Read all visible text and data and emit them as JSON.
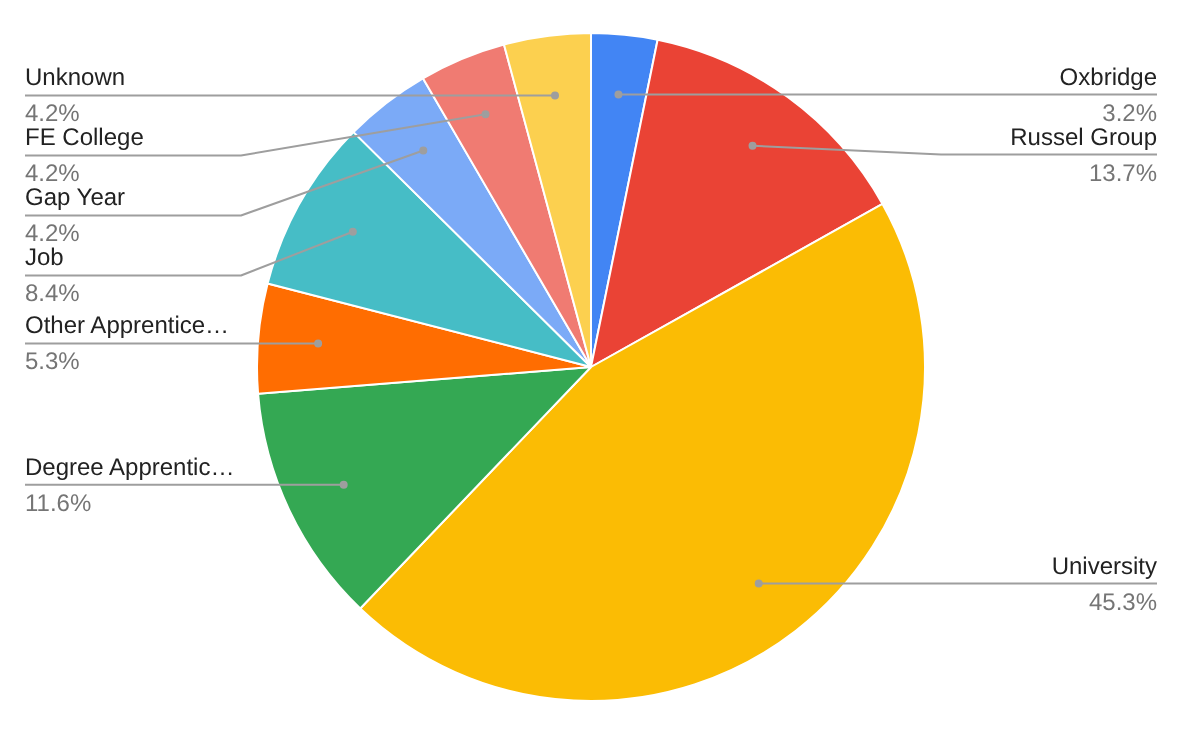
{
  "chart_data": {
    "type": "pie",
    "categories": [
      "Oxbridge",
      "Russel Group",
      "University",
      "Degree Apprentic…",
      "Other Apprentice…",
      "Job",
      "Gap Year",
      "FE College",
      "Unknown"
    ],
    "values": [
      3.2,
      13.7,
      45.3,
      11.6,
      5.3,
      8.4,
      4.2,
      4.2,
      4.2
    ],
    "colors": [
      "#4285f4",
      "#ea4335",
      "#fbbc04",
      "#34a853",
      "#ff6d01",
      "#46bdc6",
      "#7baaf7",
      "#f07b72",
      "#fcd04f"
    ],
    "value_labels": [
      "3.2%",
      "13.7%",
      "45.3%",
      "11.6%",
      "5.3%",
      "8.4%",
      "4.2%",
      "4.2%",
      "4.2%"
    ],
    "legend": false
  }
}
